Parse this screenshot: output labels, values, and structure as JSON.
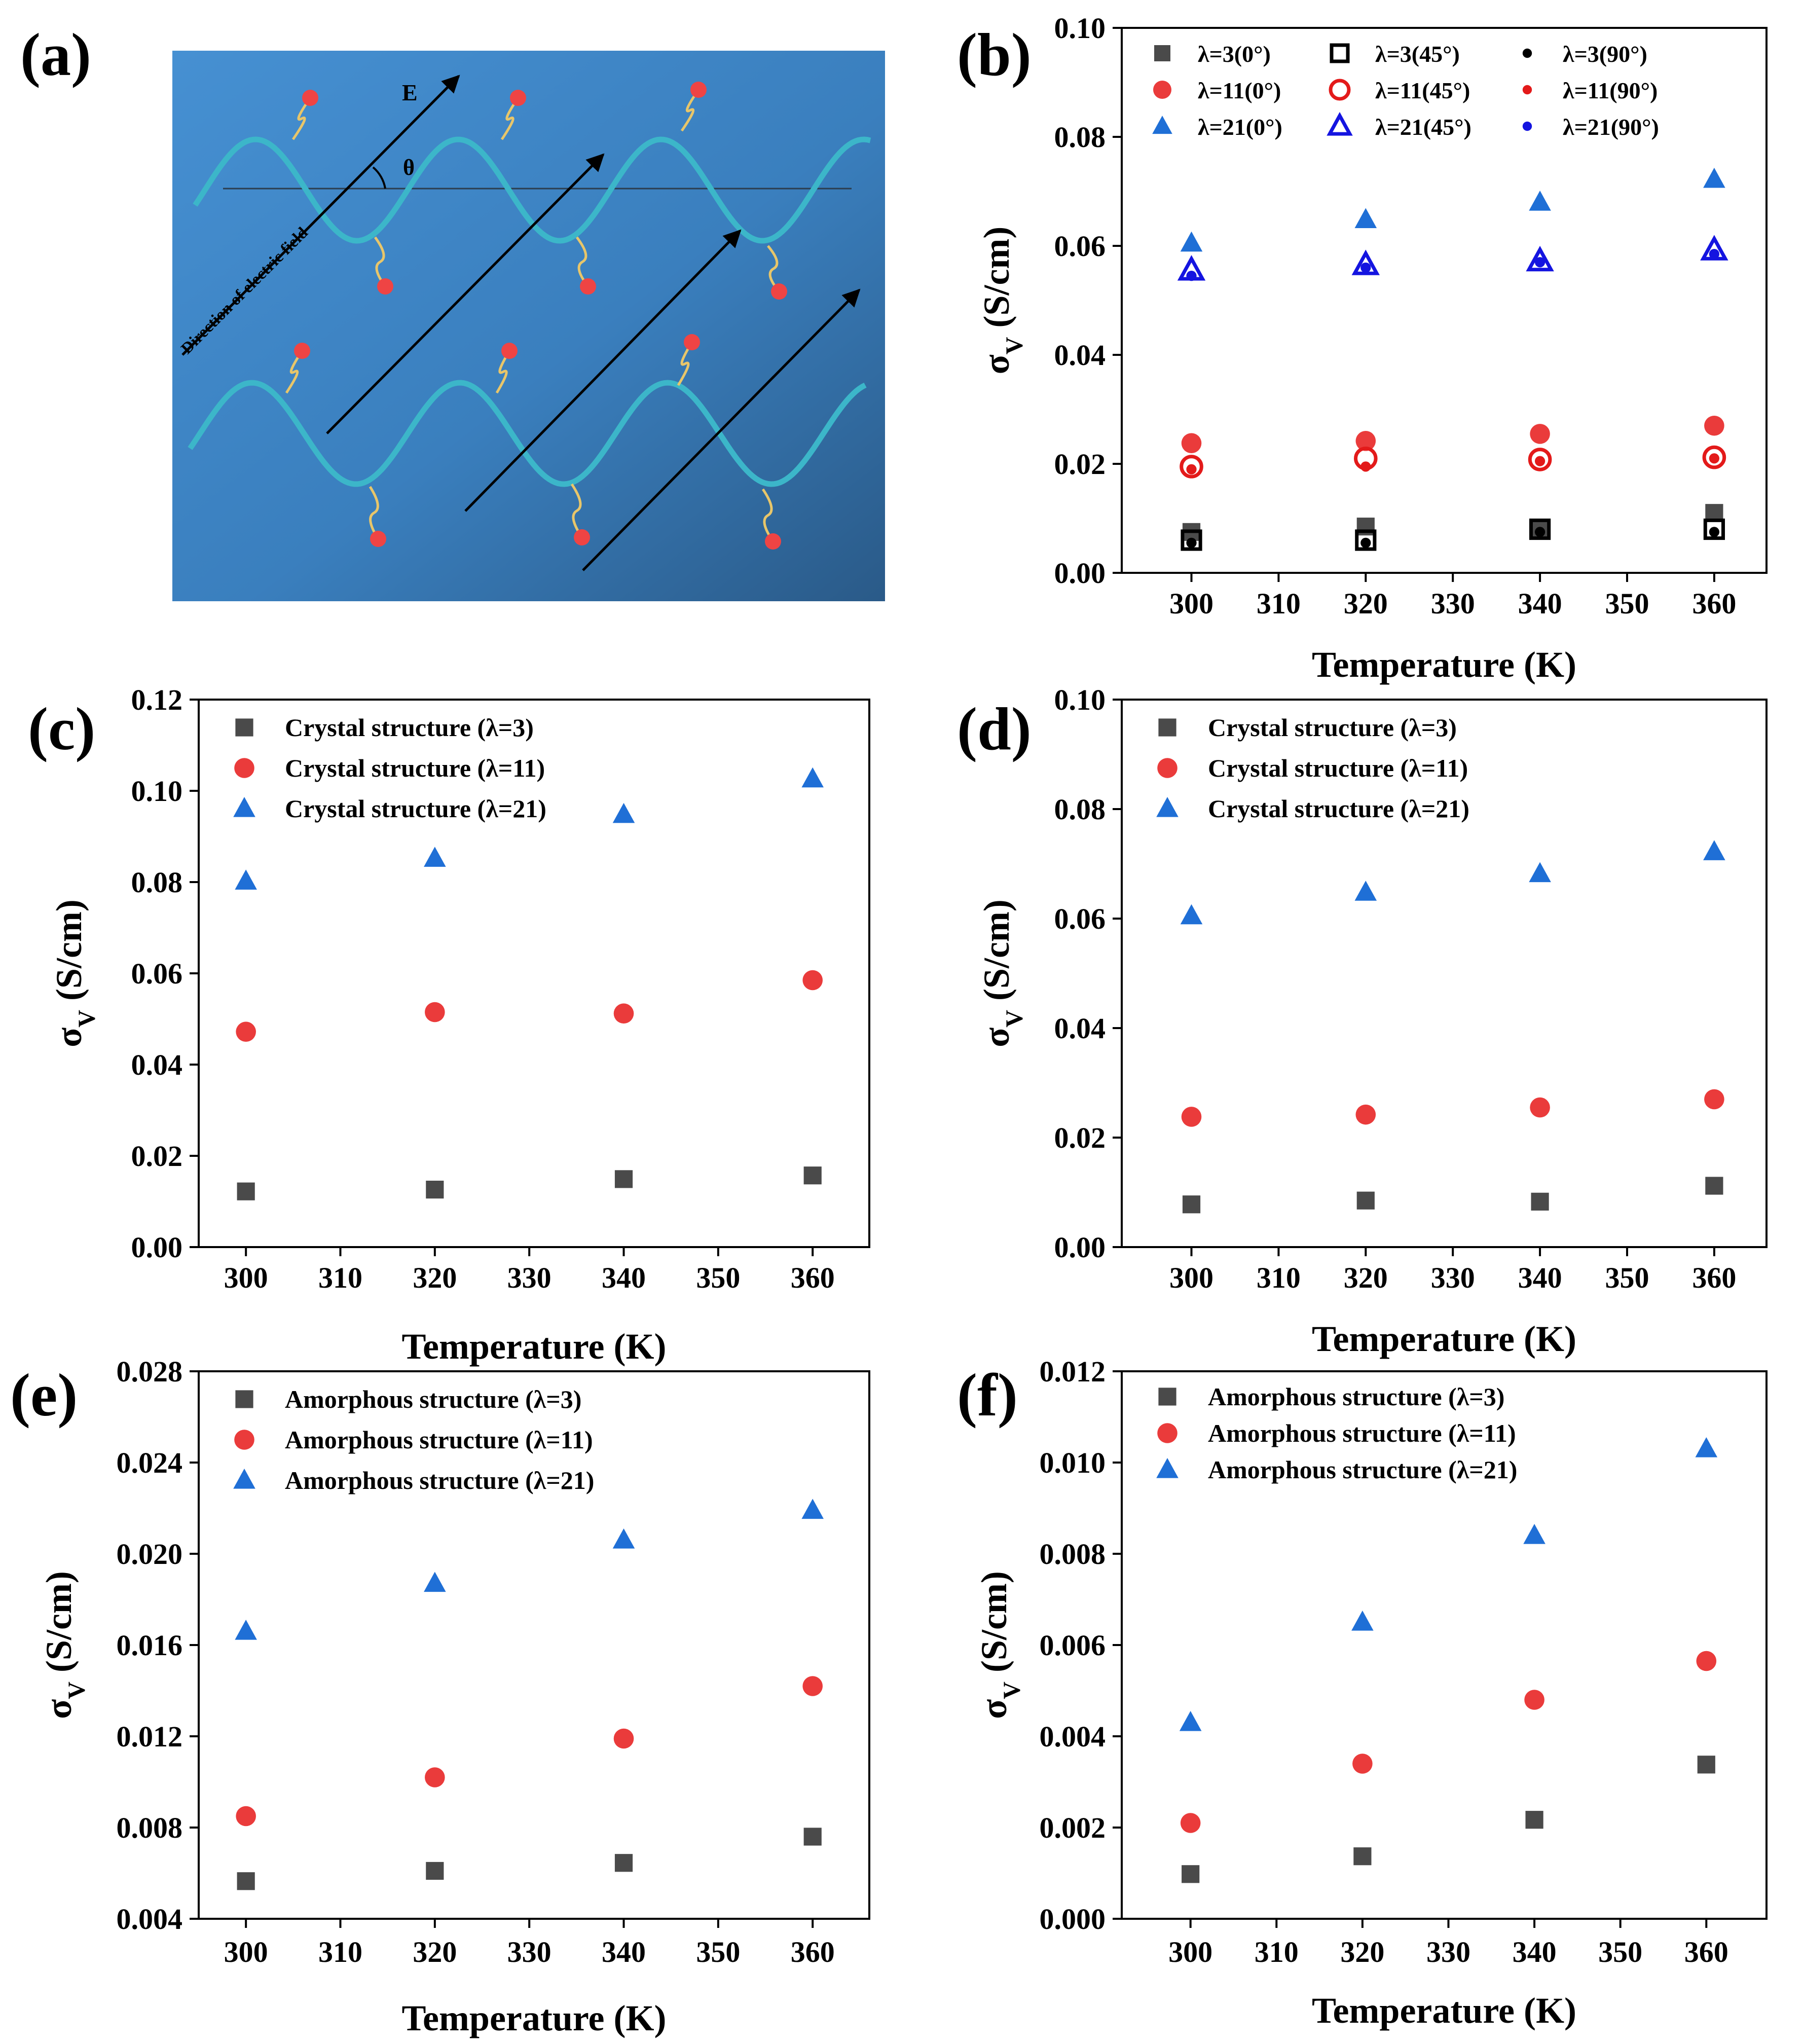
{
  "panels": {
    "a": {
      "letter": "(a)",
      "field_label": "E",
      "angle_label": "θ",
      "direction_label": "Direction of electric field"
    }
  },
  "colors": {
    "black_series": "#4a4a4a",
    "red_series": "#ea3b3b",
    "blue_series": "#1f6fd6",
    "red_open": "#e31a1a",
    "blue_open": "#1414e0",
    "diagram_bg_top": "#3f86c8",
    "diagram_bg_bottom": "#2c5f8f",
    "chain": "#3cb6c9",
    "bead": "#ef4444"
  },
  "chart_data": [
    {
      "id": "b",
      "letter": "(b)",
      "type": "scatter",
      "xlabel": "Temperature (K)",
      "ylabel": "σV (S/cm)",
      "ylabel_main": "σ",
      "ylabel_sub": "V",
      "ylabel_unit": " (S/cm)",
      "xlim": [
        292,
        366
      ],
      "ylim": [
        0.0,
        0.1
      ],
      "xticks": [
        300,
        310,
        320,
        330,
        340,
        350,
        360
      ],
      "yticks": [
        0.0,
        0.02,
        0.04,
        0.06,
        0.08,
        0.1
      ],
      "ytick_labels": [
        "0.00",
        "0.02",
        "0.04",
        "0.06",
        "0.08",
        "0.10"
      ],
      "legend_position": "top",
      "series": [
        {
          "name": "λ=3(0°)",
          "marker": "square",
          "color": "#4a4a4a",
          "fill": "solid",
          "x": [
            300,
            320,
            340,
            360
          ],
          "y": [
            0.0075,
            0.0085,
            0.0082,
            0.011
          ]
        },
        {
          "name": "λ=3(45°)",
          "marker": "square",
          "color": "#000000",
          "fill": "open",
          "x": [
            300,
            320,
            340,
            360
          ],
          "y": [
            0.006,
            0.006,
            0.008,
            0.008
          ]
        },
        {
          "name": "λ=3(90°)",
          "marker": "circle-small",
          "color": "#000000",
          "fill": "solid",
          "x": [
            300,
            320,
            340,
            360
          ],
          "y": [
            0.0055,
            0.0055,
            0.0075,
            0.0075
          ]
        },
        {
          "name": "λ=11(0°)",
          "marker": "circle",
          "color": "#ea3b3b",
          "fill": "solid",
          "x": [
            300,
            320,
            340,
            360
          ],
          "y": [
            0.0238,
            0.0242,
            0.0255,
            0.027
          ]
        },
        {
          "name": "λ=11(45°)",
          "marker": "circle",
          "color": "#e31a1a",
          "fill": "open",
          "x": [
            300,
            320,
            340,
            360
          ],
          "y": [
            0.0195,
            0.021,
            0.0208,
            0.0212
          ]
        },
        {
          "name": "λ=11(90°)",
          "marker": "circle-small",
          "color": "#e31a1a",
          "fill": "solid",
          "x": [
            300,
            320,
            340,
            360
          ],
          "y": [
            0.019,
            0.0195,
            0.0205,
            0.021
          ]
        },
        {
          "name": "λ=21(0°)",
          "marker": "triangle",
          "color": "#1f6fd6",
          "fill": "solid",
          "x": [
            300,
            320,
            340,
            360
          ],
          "y": [
            0.0605,
            0.0648,
            0.068,
            0.0722
          ]
        },
        {
          "name": "λ=21(45°)",
          "marker": "triangle",
          "color": "#1414e0",
          "fill": "open",
          "x": [
            300,
            320,
            340,
            360
          ],
          "y": [
            0.0555,
            0.0565,
            0.0572,
            0.0592
          ]
        },
        {
          "name": "λ=21(90°)",
          "marker": "circle-small",
          "color": "#1414e0",
          "fill": "solid",
          "x": [
            300,
            320,
            340,
            360
          ],
          "y": [
            0.0545,
            0.056,
            0.057,
            0.0585
          ]
        }
      ]
    },
    {
      "id": "c",
      "letter": "(c)",
      "type": "scatter",
      "xlabel": "Temperature (K)",
      "ylabel": "σV (S/cm)",
      "ylabel_main": "σ",
      "ylabel_sub": "V",
      "ylabel_unit": " (S/cm)",
      "xlim": [
        295,
        366
      ],
      "ylim": [
        0.0,
        0.12
      ],
      "xticks": [
        300,
        310,
        320,
        330,
        340,
        350,
        360
      ],
      "yticks": [
        0.0,
        0.02,
        0.04,
        0.06,
        0.08,
        0.1,
        0.12
      ],
      "ytick_labels": [
        "0.00",
        "0.02",
        "0.04",
        "0.06",
        "0.08",
        "0.10",
        "0.12"
      ],
      "legend_position": "top-left",
      "series": [
        {
          "name": "Crystal structure (λ=3)",
          "marker": "square",
          "color": "#4a4a4a",
          "fill": "solid",
          "x": [
            300,
            320,
            340,
            360
          ],
          "y": [
            0.0122,
            0.0126,
            0.0149,
            0.0157
          ]
        },
        {
          "name": "Crystal structure (λ=11)",
          "marker": "circle",
          "color": "#ea3b3b",
          "fill": "solid",
          "x": [
            300,
            320,
            340,
            360
          ],
          "y": [
            0.0472,
            0.0515,
            0.0512,
            0.0585
          ]
        },
        {
          "name": "Crystal structure (λ=21)",
          "marker": "triangle",
          "color": "#1f6fd6",
          "fill": "solid",
          "x": [
            300,
            320,
            340,
            360
          ],
          "y": [
            0.0802,
            0.0852,
            0.0948,
            0.1026
          ]
        }
      ]
    },
    {
      "id": "d",
      "letter": "(d)",
      "type": "scatter",
      "xlabel": "Temperature (K)",
      "ylabel": "σV (S/cm)",
      "ylabel_main": "σ",
      "ylabel_sub": "V",
      "ylabel_unit": " (S/cm)",
      "xlim": [
        292,
        366
      ],
      "ylim": [
        0.0,
        0.1
      ],
      "xticks": [
        300,
        310,
        320,
        330,
        340,
        350,
        360
      ],
      "yticks": [
        0.0,
        0.02,
        0.04,
        0.06,
        0.08,
        0.1
      ],
      "ytick_labels": [
        "0.00",
        "0.02",
        "0.04",
        "0.06",
        "0.08",
        "0.10"
      ],
      "legend_position": "top-left",
      "series": [
        {
          "name": "Crystal structure (λ=3)",
          "marker": "square",
          "color": "#4a4a4a",
          "fill": "solid",
          "x": [
            300,
            320,
            340,
            360
          ],
          "y": [
            0.0078,
            0.0085,
            0.0083,
            0.0112
          ]
        },
        {
          "name": "Crystal structure (λ=11)",
          "marker": "circle",
          "color": "#ea3b3b",
          "fill": "solid",
          "x": [
            300,
            320,
            340,
            360
          ],
          "y": [
            0.0238,
            0.0242,
            0.0255,
            0.027
          ]
        },
        {
          "name": "Crystal structure (λ=21)",
          "marker": "triangle",
          "color": "#1f6fd6",
          "fill": "solid",
          "x": [
            300,
            320,
            340,
            360
          ],
          "y": [
            0.0605,
            0.0648,
            0.0682,
            0.0722
          ]
        }
      ]
    },
    {
      "id": "e",
      "letter": "(e)",
      "type": "scatter",
      "xlabel": "Temperature (K)",
      "ylabel": "σV (S/cm)",
      "ylabel_main": "σ",
      "ylabel_sub": "V",
      "ylabel_unit": " (S/cm)",
      "xlim": [
        295,
        366
      ],
      "ylim": [
        0.004,
        0.028
      ],
      "xticks": [
        300,
        310,
        320,
        330,
        340,
        350,
        360
      ],
      "yticks": [
        0.004,
        0.008,
        0.012,
        0.016,
        0.02,
        0.024,
        0.028
      ],
      "ytick_labels": [
        "0.004",
        "0.008",
        "0.012",
        "0.016",
        "0.020",
        "0.024",
        "0.028"
      ],
      "legend_position": "top-left",
      "series": [
        {
          "name": "Amorphous structure (λ=3)",
          "marker": "square",
          "color": "#4a4a4a",
          "fill": "solid",
          "x": [
            300,
            320,
            340,
            360
          ],
          "y": [
            0.00565,
            0.0061,
            0.00645,
            0.0076
          ]
        },
        {
          "name": "Amorphous structure (λ=11)",
          "marker": "circle",
          "color": "#ea3b3b",
          "fill": "solid",
          "x": [
            300,
            320,
            340,
            360
          ],
          "y": [
            0.0085,
            0.0102,
            0.0119,
            0.0142
          ]
        },
        {
          "name": "Amorphous structure (λ=21)",
          "marker": "triangle",
          "color": "#1f6fd6",
          "fill": "solid",
          "x": [
            300,
            320,
            340,
            360
          ],
          "y": [
            0.0166,
            0.0187,
            0.0206,
            0.0219
          ]
        }
      ]
    },
    {
      "id": "f",
      "letter": "(f)",
      "type": "scatter",
      "xlabel": "Temperature (K)",
      "ylabel": "σV (S/cm)",
      "ylabel_main": "σ",
      "ylabel_sub": "V",
      "ylabel_unit": " (S/cm)",
      "xlim": [
        292,
        367
      ],
      "ylim": [
        0.0,
        0.012
      ],
      "xticks": [
        300,
        310,
        320,
        330,
        340,
        350,
        360
      ],
      "yticks": [
        0.0,
        0.002,
        0.004,
        0.006,
        0.008,
        0.01,
        0.012
      ],
      "ytick_labels": [
        "0.000",
        "0.002",
        "0.004",
        "0.006",
        "0.008",
        "0.010",
        "0.012"
      ],
      "legend_position": "top-left",
      "series": [
        {
          "name": "Amorphous structure (λ=3)",
          "marker": "square",
          "color": "#4a4a4a",
          "fill": "solid",
          "x": [
            300,
            320,
            340,
            360
          ],
          "y": [
            0.00098,
            0.00137,
            0.00217,
            0.00338
          ]
        },
        {
          "name": "Amorphous structure (λ=11)",
          "marker": "circle",
          "color": "#ea3b3b",
          "fill": "solid",
          "x": [
            300,
            320,
            340,
            360
          ],
          "y": [
            0.0021,
            0.0034,
            0.0048,
            0.00565
          ]
        },
        {
          "name": "Amorphous structure (λ=21)",
          "marker": "triangle",
          "color": "#1f6fd6",
          "fill": "solid",
          "x": [
            300,
            320,
            340,
            360
          ],
          "y": [
            0.0043,
            0.0065,
            0.0084,
            0.0103
          ]
        }
      ]
    }
  ]
}
